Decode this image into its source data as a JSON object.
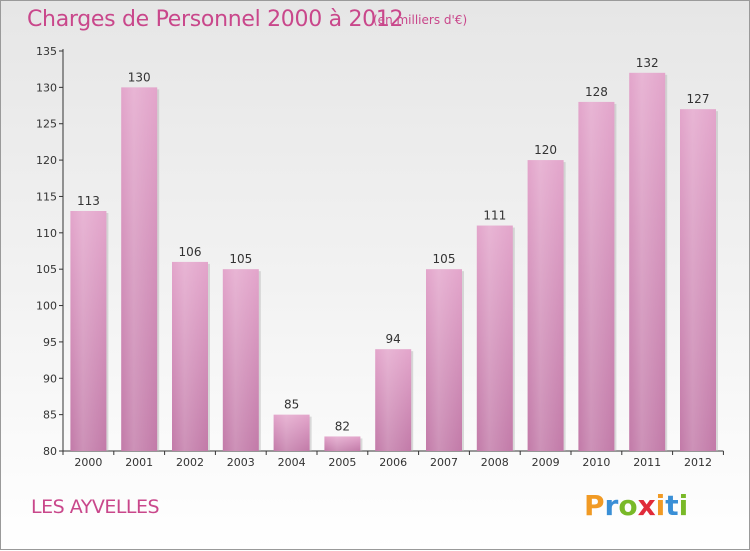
{
  "title": "Charges de Personnel 2000 à 2012",
  "subtitle": "(en milliers d'€)",
  "commune": "LES AYVELLES",
  "logo": {
    "letters": [
      "P",
      "r",
      "o",
      "x",
      "i",
      "t",
      "i"
    ],
    "colors": [
      "#f19a24",
      "#3a8fd6",
      "#79b928",
      "#e02a39",
      "#f19a24",
      "#3a8fd6",
      "#79b928"
    ]
  },
  "colors": {
    "bar": "#d691bc",
    "text": "#c9478b"
  },
  "chart_data": {
    "type": "bar",
    "title": "Charges de Personnel 2000 à 2012",
    "subtitle": "(en milliers d'€)",
    "categories": [
      "2000",
      "2001",
      "2002",
      "2003",
      "2004",
      "2005",
      "2006",
      "2007",
      "2008",
      "2009",
      "2010",
      "2011",
      "2012"
    ],
    "values": [
      113,
      130,
      106,
      105,
      85,
      82,
      94,
      105,
      111,
      120,
      128,
      132,
      127
    ],
    "ylim": [
      80,
      135
    ],
    "yticks": [
      80,
      85,
      90,
      95,
      100,
      105,
      110,
      115,
      120,
      125,
      130,
      135
    ],
    "grid": false,
    "xlabel": "",
    "ylabel": ""
  }
}
